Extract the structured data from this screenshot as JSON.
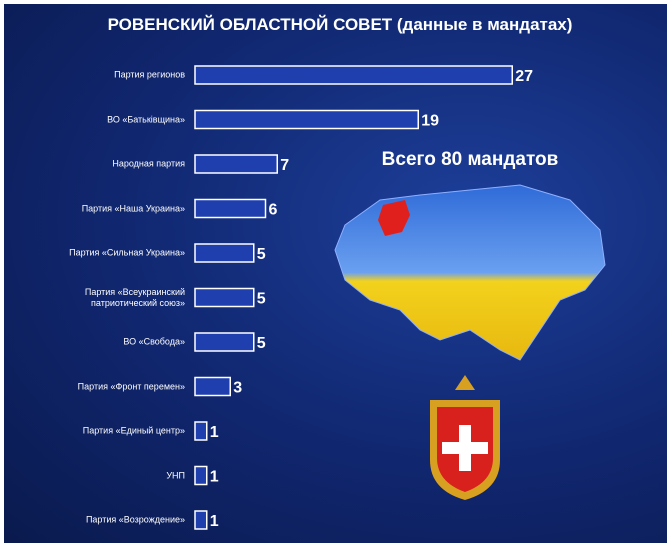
{
  "chart_data": {
    "type": "barh",
    "title": "РОВЕНСКИЙ ОБЛАСТНОЙ СОВЕТ (данные в мандатах)",
    "annotation": "Всего 80 мандатов",
    "categories": [
      "Партия регионов",
      "ВО «Батьківщина»",
      "Народная партия",
      "Партия «Наша Украина»",
      "Партия «Сильная Украина»",
      "Партия «Всеукраинский патриотический союз»",
      "ВО «Свобода»",
      "Партия «Фронт перемен»",
      "Партия «Единый центр»",
      "УНП",
      "Партия «Возрождение»"
    ],
    "values": [
      27,
      19,
      7,
      6,
      5,
      5,
      5,
      3,
      1,
      1,
      1
    ],
    "color": "#1f3fae",
    "xlim": [
      0,
      28
    ]
  }
}
